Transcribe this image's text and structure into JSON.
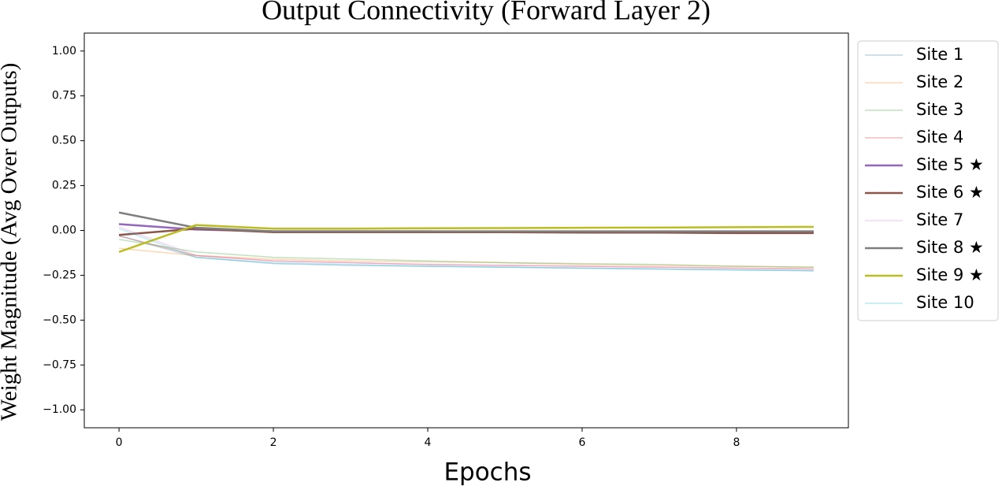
{
  "chart_data": {
    "type": "line",
    "title": "Output Connectivity (Forward Layer 2)",
    "xlabel": "Epochs",
    "ylabel": "Weight Magnitude (Avg Over Outputs)",
    "x": [
      0,
      1,
      2,
      3,
      4,
      5,
      6,
      7,
      8,
      9
    ],
    "xlim": [
      -0.45,
      9.45
    ],
    "xticks": [
      0,
      2,
      4,
      6,
      8
    ],
    "ylim": [
      -1.1,
      1.1
    ],
    "yticks": [
      {
        "value": -1,
        "label": "−1.00"
      },
      {
        "value": -0.75,
        "label": "−0.75"
      },
      {
        "value": -0.5,
        "label": "−0.50"
      },
      {
        "value": -0.25,
        "label": "−0.25"
      },
      {
        "value": 0,
        "label": "0.00"
      },
      {
        "value": 0.25,
        "label": "0.25"
      },
      {
        "value": 0.5,
        "label": "0.50"
      },
      {
        "value": 0.75,
        "label": "0.75"
      },
      {
        "value": 1,
        "label": "1.00"
      }
    ],
    "grid": false,
    "legend": "outside right",
    "series": [
      {
        "name": "Site 1",
        "color": "#1f77b44d",
        "values": [
          -0.03,
          -0.15,
          -0.185,
          -0.195,
          -0.2,
          -0.205,
          -0.21,
          -0.215,
          -0.22,
          -0.225
        ]
      },
      {
        "name": "Site 2",
        "color": "#ff7f0e4d",
        "values": [
          -0.1,
          -0.14,
          -0.16,
          -0.17,
          -0.175,
          -0.18,
          -0.19,
          -0.195,
          -0.2,
          -0.205
        ]
      },
      {
        "name": "Site 3",
        "color": "#2ca02c4d",
        "values": [
          -0.05,
          -0.12,
          -0.15,
          -0.16,
          -0.17,
          -0.18,
          -0.185,
          -0.19,
          -0.2,
          -0.205
        ]
      },
      {
        "name": "Site 4",
        "color": "#d627284d",
        "values": [
          -0.03,
          -0.14,
          -0.17,
          -0.18,
          -0.19,
          -0.195,
          -0.2,
          -0.205,
          -0.21,
          -0.215
        ]
      },
      {
        "name": "Site 5 ★",
        "color": "#9467bd",
        "values": [
          0.035,
          0.005,
          -0.005,
          -0.005,
          -0.005,
          -0.01,
          -0.01,
          -0.01,
          -0.01,
          -0.01
        ]
      },
      {
        "name": "Site 6 ★",
        "color": "#8c564b",
        "values": [
          -0.025,
          0.01,
          -0.01,
          -0.01,
          -0.01,
          -0.01,
          -0.012,
          -0.012,
          -0.015,
          -0.015
        ]
      },
      {
        "name": "Site 7",
        "color": "#e377c24d",
        "values": [
          0.02,
          -0.14,
          -0.17,
          -0.18,
          -0.19,
          -0.195,
          -0.2,
          -0.205,
          -0.21,
          -0.215
        ]
      },
      {
        "name": "Site 8 ★",
        "color": "#7f7f7f",
        "values": [
          0.1,
          0.015,
          -0.005,
          -0.005,
          -0.005,
          -0.005,
          -0.005,
          -0.005,
          -0.005,
          -0.005
        ]
      },
      {
        "name": "Site 9 ★",
        "color": "#bcbd22",
        "values": [
          -0.12,
          0.03,
          0.01,
          0.01,
          0.012,
          0.013,
          0.015,
          0.016,
          0.018,
          0.02
        ]
      },
      {
        "name": "Site 10",
        "color": "#17becf4d",
        "values": [
          0.01,
          -0.15,
          -0.18,
          -0.19,
          -0.2,
          -0.205,
          -0.21,
          -0.215,
          -0.22,
          -0.225
        ]
      }
    ]
  }
}
